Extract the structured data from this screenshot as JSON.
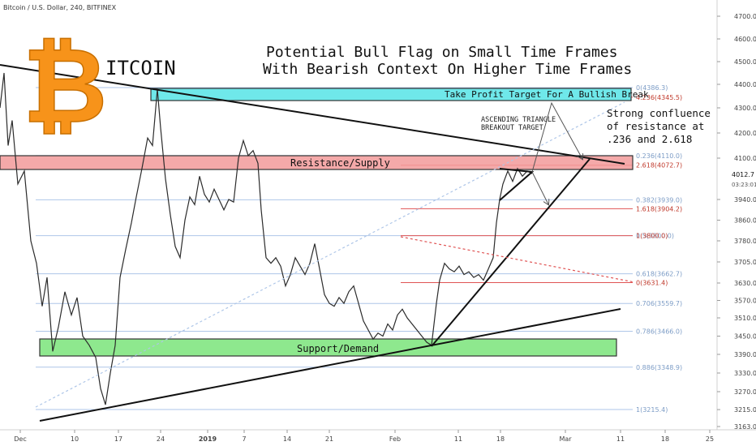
{
  "header": {
    "symbol_label": "Bitcoin / U.S. Dollar, 240, BITFINEX"
  },
  "title": {
    "line1": "Potential Bull Flag on Small Time Frames",
    "line2": "With Bearish Context On Higher Time Frames"
  },
  "logo": {
    "text": "ITCOIN",
    "symbol": "₿",
    "color": "#f7931a"
  },
  "annotations": {
    "take_profit": "Take Profit Target For A Bullish Break",
    "resistance": "Resistance/Supply",
    "support": "Support/Demand",
    "ascending_1": "ASCENDING TRIANGLE",
    "ascending_2": "BREAKOUT TARGET",
    "confluence_1": "Strong confluence",
    "confluence_2": "of resistance at",
    "confluence_3": ".236 and 2.618"
  },
  "colors": {
    "take_profit_zone": "#6fe8ea",
    "resistance_zone": "#f29a9a",
    "support_zone": "#8ee88e",
    "fib_blue": "#aec6e8",
    "fib_red": "#e05454",
    "price_tag": "#303030"
  },
  "chart_data": {
    "type": "line",
    "symbol": "Bitcoin / U.S. Dollar, 240, BITFINEX",
    "ylim": [
      3140,
      4780
    ],
    "y_ticks": [
      "4700.0",
      "4600.0",
      "4500.0",
      "4400.0",
      "4300.0",
      "4200.0",
      "4100.0",
      "3940.0",
      "3860.0",
      "3780.0",
      "3705.0",
      "3630.0",
      "3570.0",
      "3510.0",
      "3450.0",
      "3390.0",
      "3330.0",
      "3270.0",
      "3215.0",
      "3163.0"
    ],
    "current_price": "4012.7",
    "countdown": "03:23:01",
    "x_ticks": [
      "Dec",
      "10",
      "17",
      "24",
      "2019",
      "7",
      "14",
      "21",
      "Feb",
      "11",
      "18",
      "Mar",
      "11",
      "18",
      "25"
    ],
    "fib_levels": [
      {
        "label": "0(4386.3)",
        "price": 4386.3,
        "color": "blue"
      },
      {
        "label": "0.236(4110.0)",
        "price": 4110.0,
        "color": "blue"
      },
      {
        "label": "0.382(3939.0)",
        "price": 3939.0,
        "color": "blue"
      },
      {
        "label": "0.5(3800.0)",
        "price": 3800.0,
        "color": "blue"
      },
      {
        "label": "0.618(3662.7)",
        "price": 3662.7,
        "color": "blue"
      },
      {
        "label": "0.706(3559.7)",
        "price": 3559.7,
        "color": "blue"
      },
      {
        "label": "0.786(3466.0)",
        "price": 3466.0,
        "color": "blue"
      },
      {
        "label": "0.886(3348.9)",
        "price": 3348.9,
        "color": "blue"
      },
      {
        "label": "1(3215.4)",
        "price": 3215.4,
        "color": "blue"
      },
      {
        "label": "4.236(4345.5)",
        "price": 4345.5,
        "color": "red"
      },
      {
        "label": "2.618(4072.7)",
        "price": 4072.7,
        "color": "red"
      },
      {
        "label": "1.618(3904.2)",
        "price": 3904.2,
        "color": "red"
      },
      {
        "label": "1(3800.0)",
        "price": 3800.0,
        "color": "red"
      },
      {
        "label": "0(3631.4)",
        "price": 3631.4,
        "color": "red"
      }
    ],
    "zones": [
      {
        "name": "Take Profit Target For A Bullish Break",
        "from": 4350,
        "to": 4400
      },
      {
        "name": "Resistance/Supply",
        "from": 4060,
        "to": 4120
      },
      {
        "name": "Support/Demand",
        "from": 3380,
        "to": 3430
      }
    ],
    "price_series": [
      {
        "x": 0,
        "y": 4300
      },
      {
        "x": 5,
        "y": 4450
      },
      {
        "x": 10,
        "y": 4150
      },
      {
        "x": 15,
        "y": 4250
      },
      {
        "x": 22,
        "y": 4000
      },
      {
        "x": 30,
        "y": 4050
      },
      {
        "x": 38,
        "y": 3780
      },
      {
        "x": 45,
        "y": 3700
      },
      {
        "x": 52,
        "y": 3550
      },
      {
        "x": 58,
        "y": 3650
      },
      {
        "x": 65,
        "y": 3400
      },
      {
        "x": 72,
        "y": 3480
      },
      {
        "x": 80,
        "y": 3600
      },
      {
        "x": 88,
        "y": 3520
      },
      {
        "x": 95,
        "y": 3580
      },
      {
        "x": 102,
        "y": 3450
      },
      {
        "x": 110,
        "y": 3420
      },
      {
        "x": 118,
        "y": 3380
      },
      {
        "x": 124,
        "y": 3280
      },
      {
        "x": 130,
        "y": 3230
      },
      {
        "x": 136,
        "y": 3330
      },
      {
        "x": 142,
        "y": 3420
      },
      {
        "x": 148,
        "y": 3650
      },
      {
        "x": 155,
        "y": 3750
      },
      {
        "x": 162,
        "y": 3850
      },
      {
        "x": 168,
        "y": 3950
      },
      {
        "x": 175,
        "y": 4060
      },
      {
        "x": 182,
        "y": 4180
      },
      {
        "x": 188,
        "y": 4150
      },
      {
        "x": 194,
        "y": 4380
      },
      {
        "x": 198,
        "y": 4220
      },
      {
        "x": 204,
        "y": 4020
      },
      {
        "x": 210,
        "y": 3880
      },
      {
        "x": 216,
        "y": 3760
      },
      {
        "x": 222,
        "y": 3720
      },
      {
        "x": 228,
        "y": 3860
      },
      {
        "x": 234,
        "y": 3950
      },
      {
        "x": 240,
        "y": 3920
      },
      {
        "x": 246,
        "y": 4030
      },
      {
        "x": 252,
        "y": 3960
      },
      {
        "x": 258,
        "y": 3930
      },
      {
        "x": 264,
        "y": 3980
      },
      {
        "x": 270,
        "y": 3940
      },
      {
        "x": 276,
        "y": 3900
      },
      {
        "x": 282,
        "y": 3940
      },
      {
        "x": 288,
        "y": 3930
      },
      {
        "x": 294,
        "y": 4100
      },
      {
        "x": 300,
        "y": 4170
      },
      {
        "x": 306,
        "y": 4110
      },
      {
        "x": 312,
        "y": 4130
      },
      {
        "x": 318,
        "y": 4080
      },
      {
        "x": 322,
        "y": 3900
      },
      {
        "x": 328,
        "y": 3720
      },
      {
        "x": 334,
        "y": 3700
      },
      {
        "x": 340,
        "y": 3720
      },
      {
        "x": 346,
        "y": 3690
      },
      {
        "x": 352,
        "y": 3620
      },
      {
        "x": 358,
        "y": 3660
      },
      {
        "x": 364,
        "y": 3720
      },
      {
        "x": 370,
        "y": 3690
      },
      {
        "x": 376,
        "y": 3660
      },
      {
        "x": 382,
        "y": 3700
      },
      {
        "x": 388,
        "y": 3770
      },
      {
        "x": 394,
        "y": 3680
      },
      {
        "x": 400,
        "y": 3590
      },
      {
        "x": 406,
        "y": 3560
      },
      {
        "x": 412,
        "y": 3550
      },
      {
        "x": 418,
        "y": 3580
      },
      {
        "x": 424,
        "y": 3560
      },
      {
        "x": 430,
        "y": 3600
      },
      {
        "x": 436,
        "y": 3620
      },
      {
        "x": 442,
        "y": 3560
      },
      {
        "x": 448,
        "y": 3500
      },
      {
        "x": 454,
        "y": 3470
      },
      {
        "x": 460,
        "y": 3440
      },
      {
        "x": 466,
        "y": 3460
      },
      {
        "x": 472,
        "y": 3450
      },
      {
        "x": 478,
        "y": 3490
      },
      {
        "x": 484,
        "y": 3470
      },
      {
        "x": 490,
        "y": 3520
      },
      {
        "x": 496,
        "y": 3540
      },
      {
        "x": 502,
        "y": 3510
      },
      {
        "x": 508,
        "y": 3490
      },
      {
        "x": 514,
        "y": 3470
      },
      {
        "x": 520,
        "y": 3450
      },
      {
        "x": 526,
        "y": 3430
      },
      {
        "x": 532,
        "y": 3420
      },
      {
        "x": 538,
        "y": 3560
      },
      {
        "x": 542,
        "y": 3640
      },
      {
        "x": 548,
        "y": 3700
      },
      {
        "x": 554,
        "y": 3680
      },
      {
        "x": 560,
        "y": 3670
      },
      {
        "x": 566,
        "y": 3690
      },
      {
        "x": 572,
        "y": 3660
      },
      {
        "x": 578,
        "y": 3670
      },
      {
        "x": 584,
        "y": 3650
      },
      {
        "x": 590,
        "y": 3660
      },
      {
        "x": 596,
        "y": 3640
      },
      {
        "x": 602,
        "y": 3680
      },
      {
        "x": 608,
        "y": 3720
      },
      {
        "x": 612,
        "y": 3850
      },
      {
        "x": 616,
        "y": 3940
      },
      {
        "x": 620,
        "y": 4000
      },
      {
        "x": 626,
        "y": 4050
      },
      {
        "x": 632,
        "y": 4010
      },
      {
        "x": 638,
        "y": 4060
      },
      {
        "x": 644,
        "y": 4030
      },
      {
        "x": 650,
        "y": 4050
      },
      {
        "x": 656,
        "y": 4040
      }
    ]
  }
}
